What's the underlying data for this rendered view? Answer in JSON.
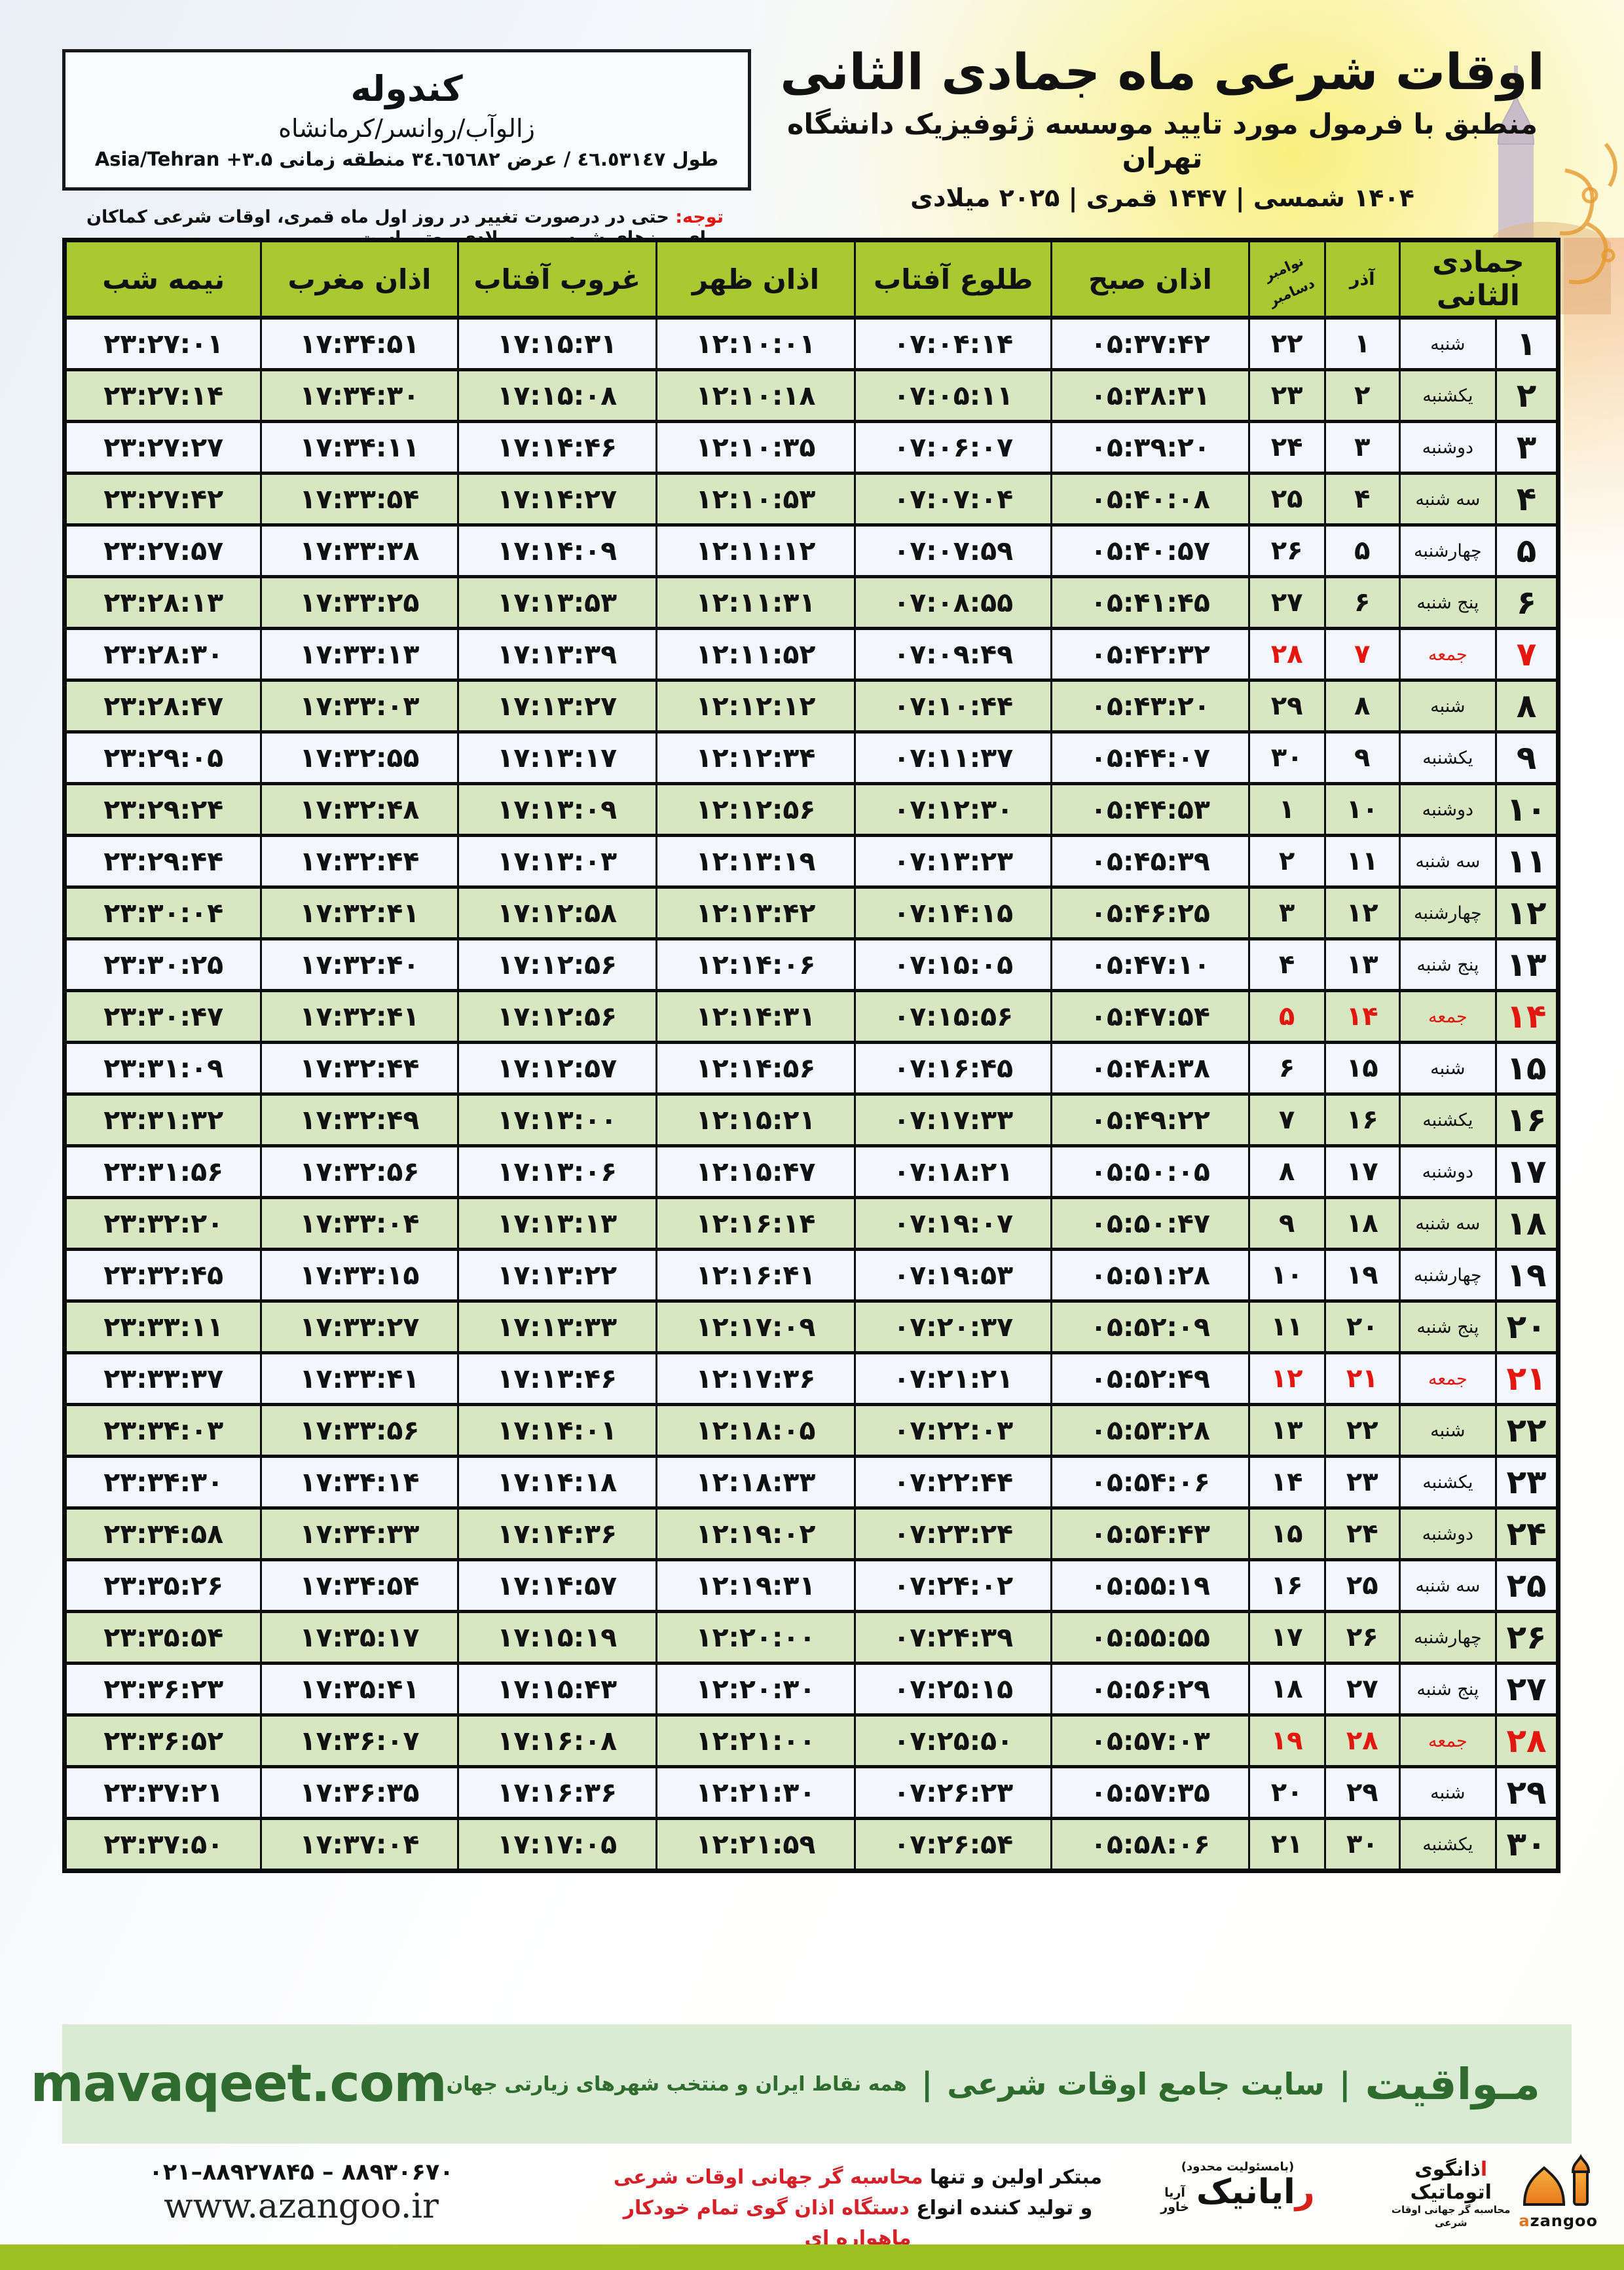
{
  "title": {
    "line1": "اوقات شرعی ماه جمادی الثانی",
    "line2": "منطبق با فرمول مورد تایید موسسه ژئوفیزیک دانشگاه تهران",
    "line3": "۱۴۰۴ شمسی | ۱۴۴۷ قمری | ۲۰۲۵ میلادی"
  },
  "location": {
    "name": "کندوله",
    "region": "زالوآب/روانسر/کرمانشاه",
    "coords": "طول ٤٦.٥٣١٤٧ / عرض ٣٤.٦٥٦٨٢ منطقه زمانی ۳.۵+ Asia/Tehran"
  },
  "note": {
    "label": "توجه:",
    "text": " حتی در درصورت تغییر در روز اول ماه قمری، اوقات شرعی کماکان برای روزهای شمسی و میلادی معتبر است."
  },
  "table": {
    "headers": {
      "jumada": "جمادی الثانی",
      "azar": "آذر",
      "greg_top": "نوامبر",
      "greg_bottom": "دسامبر",
      "fajr": "اذان صبح",
      "sunrise": "طلوع آفتاب",
      "dhuhr": "اذان ظهر",
      "sunset": "غروب آفتاب",
      "maghrib": "اذان مغرب",
      "midnight": "نیمه شب"
    },
    "rows": [
      {
        "day": "۱",
        "weekday": "شنبه",
        "azar": "۱",
        "greg": "۲۲",
        "fajr": "۰۵:۳۷:۴۲",
        "sunrise": "۰۷:۰۴:۱۴",
        "dhuhr": "۱۲:۱۰:۰۱",
        "sunset": "۱۷:۱۵:۳۱",
        "maghrib": "۱۷:۳۴:۵۱",
        "midnight": "۲۳:۲۷:۰۱",
        "friday": false
      },
      {
        "day": "۲",
        "weekday": "یکشنبه",
        "azar": "۲",
        "greg": "۲۳",
        "fajr": "۰۵:۳۸:۳۱",
        "sunrise": "۰۷:۰۵:۱۱",
        "dhuhr": "۱۲:۱۰:۱۸",
        "sunset": "۱۷:۱۵:۰۸",
        "maghrib": "۱۷:۳۴:۳۰",
        "midnight": "۲۳:۲۷:۱۴",
        "friday": false
      },
      {
        "day": "۳",
        "weekday": "دوشنبه",
        "azar": "۳",
        "greg": "۲۴",
        "fajr": "۰۵:۳۹:۲۰",
        "sunrise": "۰۷:۰۶:۰۷",
        "dhuhr": "۱۲:۱۰:۳۵",
        "sunset": "۱۷:۱۴:۴۶",
        "maghrib": "۱۷:۳۴:۱۱",
        "midnight": "۲۳:۲۷:۲۷",
        "friday": false
      },
      {
        "day": "۴",
        "weekday": "سه شنبه",
        "azar": "۴",
        "greg": "۲۵",
        "fajr": "۰۵:۴۰:۰۸",
        "sunrise": "۰۷:۰۷:۰۴",
        "dhuhr": "۱۲:۱۰:۵۳",
        "sunset": "۱۷:۱۴:۲۷",
        "maghrib": "۱۷:۳۳:۵۴",
        "midnight": "۲۳:۲۷:۴۲",
        "friday": false
      },
      {
        "day": "۵",
        "weekday": "چهارشنبه",
        "azar": "۵",
        "greg": "۲۶",
        "fajr": "۰۵:۴۰:۵۷",
        "sunrise": "۰۷:۰۷:۵۹",
        "dhuhr": "۱۲:۱۱:۱۲",
        "sunset": "۱۷:۱۴:۰۹",
        "maghrib": "۱۷:۳۳:۳۸",
        "midnight": "۲۳:۲۷:۵۷",
        "friday": false
      },
      {
        "day": "۶",
        "weekday": "پنج شنبه",
        "azar": "۶",
        "greg": "۲۷",
        "fajr": "۰۵:۴۱:۴۵",
        "sunrise": "۰۷:۰۸:۵۵",
        "dhuhr": "۱۲:۱۱:۳۱",
        "sunset": "۱۷:۱۳:۵۳",
        "maghrib": "۱۷:۳۳:۲۵",
        "midnight": "۲۳:۲۸:۱۳",
        "friday": false
      },
      {
        "day": "۷",
        "weekday": "جمعه",
        "azar": "۷",
        "greg": "۲۸",
        "fajr": "۰۵:۴۲:۳۲",
        "sunrise": "۰۷:۰۹:۴۹",
        "dhuhr": "۱۲:۱۱:۵۲",
        "sunset": "۱۷:۱۳:۳۹",
        "maghrib": "۱۷:۳۳:۱۳",
        "midnight": "۲۳:۲۸:۳۰",
        "friday": true
      },
      {
        "day": "۸",
        "weekday": "شنبه",
        "azar": "۸",
        "greg": "۲۹",
        "fajr": "۰۵:۴۳:۲۰",
        "sunrise": "۰۷:۱۰:۴۴",
        "dhuhr": "۱۲:۱۲:۱۲",
        "sunset": "۱۷:۱۳:۲۷",
        "maghrib": "۱۷:۳۳:۰۳",
        "midnight": "۲۳:۲۸:۴۷",
        "friday": false
      },
      {
        "day": "۹",
        "weekday": "یکشنبه",
        "azar": "۹",
        "greg": "۳۰",
        "fajr": "۰۵:۴۴:۰۷",
        "sunrise": "۰۷:۱۱:۳۷",
        "dhuhr": "۱۲:۱۲:۳۴",
        "sunset": "۱۷:۱۳:۱۷",
        "maghrib": "۱۷:۳۲:۵۵",
        "midnight": "۲۳:۲۹:۰۵",
        "friday": false
      },
      {
        "day": "۱۰",
        "weekday": "دوشنبه",
        "azar": "۱۰",
        "greg": "۱",
        "fajr": "۰۵:۴۴:۵۳",
        "sunrise": "۰۷:۱۲:۳۰",
        "dhuhr": "۱۲:۱۲:۵۶",
        "sunset": "۱۷:۱۳:۰۹",
        "maghrib": "۱۷:۳۲:۴۸",
        "midnight": "۲۳:۲۹:۲۴",
        "friday": false
      },
      {
        "day": "۱۱",
        "weekday": "سه شنبه",
        "azar": "۱۱",
        "greg": "۲",
        "fajr": "۰۵:۴۵:۳۹",
        "sunrise": "۰۷:۱۳:۲۳",
        "dhuhr": "۱۲:۱۳:۱۹",
        "sunset": "۱۷:۱۳:۰۳",
        "maghrib": "۱۷:۳۲:۴۴",
        "midnight": "۲۳:۲۹:۴۴",
        "friday": false
      },
      {
        "day": "۱۲",
        "weekday": "چهارشنبه",
        "azar": "۱۲",
        "greg": "۳",
        "fajr": "۰۵:۴۶:۲۵",
        "sunrise": "۰۷:۱۴:۱۵",
        "dhuhr": "۱۲:۱۳:۴۲",
        "sunset": "۱۷:۱۲:۵۸",
        "maghrib": "۱۷:۳۲:۴۱",
        "midnight": "۲۳:۳۰:۰۴",
        "friday": false
      },
      {
        "day": "۱۳",
        "weekday": "پنج شنبه",
        "azar": "۱۳",
        "greg": "۴",
        "fajr": "۰۵:۴۷:۱۰",
        "sunrise": "۰۷:۱۵:۰۵",
        "dhuhr": "۱۲:۱۴:۰۶",
        "sunset": "۱۷:۱۲:۵۶",
        "maghrib": "۱۷:۳۲:۴۰",
        "midnight": "۲۳:۳۰:۲۵",
        "friday": false
      },
      {
        "day": "۱۴",
        "weekday": "جمعه",
        "azar": "۱۴",
        "greg": "۵",
        "fajr": "۰۵:۴۷:۵۴",
        "sunrise": "۰۷:۱۵:۵۶",
        "dhuhr": "۱۲:۱۴:۳۱",
        "sunset": "۱۷:۱۲:۵۶",
        "maghrib": "۱۷:۳۲:۴۱",
        "midnight": "۲۳:۳۰:۴۷",
        "friday": true
      },
      {
        "day": "۱۵",
        "weekday": "شنبه",
        "azar": "۱۵",
        "greg": "۶",
        "fajr": "۰۵:۴۸:۳۸",
        "sunrise": "۰۷:۱۶:۴۵",
        "dhuhr": "۱۲:۱۴:۵۶",
        "sunset": "۱۷:۱۲:۵۷",
        "maghrib": "۱۷:۳۲:۴۴",
        "midnight": "۲۳:۳۱:۰۹",
        "friday": false
      },
      {
        "day": "۱۶",
        "weekday": "یکشنبه",
        "azar": "۱۶",
        "greg": "۷",
        "fajr": "۰۵:۴۹:۲۲",
        "sunrise": "۰۷:۱۷:۳۳",
        "dhuhr": "۱۲:۱۵:۲۱",
        "sunset": "۱۷:۱۳:۰۰",
        "maghrib": "۱۷:۳۲:۴۹",
        "midnight": "۲۳:۳۱:۳۲",
        "friday": false
      },
      {
        "day": "۱۷",
        "weekday": "دوشنبه",
        "azar": "۱۷",
        "greg": "۸",
        "fajr": "۰۵:۵۰:۰۵",
        "sunrise": "۰۷:۱۸:۲۱",
        "dhuhr": "۱۲:۱۵:۴۷",
        "sunset": "۱۷:۱۳:۰۶",
        "maghrib": "۱۷:۳۲:۵۶",
        "midnight": "۲۳:۳۱:۵۶",
        "friday": false
      },
      {
        "day": "۱۸",
        "weekday": "سه شنبه",
        "azar": "۱۸",
        "greg": "۹",
        "fajr": "۰۵:۵۰:۴۷",
        "sunrise": "۰۷:۱۹:۰۷",
        "dhuhr": "۱۲:۱۶:۱۴",
        "sunset": "۱۷:۱۳:۱۳",
        "maghrib": "۱۷:۳۳:۰۴",
        "midnight": "۲۳:۳۲:۲۰",
        "friday": false
      },
      {
        "day": "۱۹",
        "weekday": "چهارشنبه",
        "azar": "۱۹",
        "greg": "۱۰",
        "fajr": "۰۵:۵۱:۲۸",
        "sunrise": "۰۷:۱۹:۵۳",
        "dhuhr": "۱۲:۱۶:۴۱",
        "sunset": "۱۷:۱۳:۲۲",
        "maghrib": "۱۷:۳۳:۱۵",
        "midnight": "۲۳:۳۲:۴۵",
        "friday": false
      },
      {
        "day": "۲۰",
        "weekday": "پنج شنبه",
        "azar": "۲۰",
        "greg": "۱۱",
        "fajr": "۰۵:۵۲:۰۹",
        "sunrise": "۰۷:۲۰:۳۷",
        "dhuhr": "۱۲:۱۷:۰۹",
        "sunset": "۱۷:۱۳:۳۳",
        "maghrib": "۱۷:۳۳:۲۷",
        "midnight": "۲۳:۳۳:۱۱",
        "friday": false
      },
      {
        "day": "۲۱",
        "weekday": "جمعه",
        "azar": "۲۱",
        "greg": "۱۲",
        "fajr": "۰۵:۵۲:۴۹",
        "sunrise": "۰۷:۲۱:۲۱",
        "dhuhr": "۱۲:۱۷:۳۶",
        "sunset": "۱۷:۱۳:۴۶",
        "maghrib": "۱۷:۳۳:۴۱",
        "midnight": "۲۳:۳۳:۳۷",
        "friday": true
      },
      {
        "day": "۲۲",
        "weekday": "شنبه",
        "azar": "۲۲",
        "greg": "۱۳",
        "fajr": "۰۵:۵۳:۲۸",
        "sunrise": "۰۷:۲۲:۰۳",
        "dhuhr": "۱۲:۱۸:۰۵",
        "sunset": "۱۷:۱۴:۰۱",
        "maghrib": "۱۷:۳۳:۵۶",
        "midnight": "۲۳:۳۴:۰۳",
        "friday": false
      },
      {
        "day": "۲۳",
        "weekday": "یکشنبه",
        "azar": "۲۳",
        "greg": "۱۴",
        "fajr": "۰۵:۵۴:۰۶",
        "sunrise": "۰۷:۲۲:۴۴",
        "dhuhr": "۱۲:۱۸:۳۳",
        "sunset": "۱۷:۱۴:۱۸",
        "maghrib": "۱۷:۳۴:۱۴",
        "midnight": "۲۳:۳۴:۳۰",
        "friday": false
      },
      {
        "day": "۲۴",
        "weekday": "دوشنبه",
        "azar": "۲۴",
        "greg": "۱۵",
        "fajr": "۰۵:۵۴:۴۳",
        "sunrise": "۰۷:۲۳:۲۴",
        "dhuhr": "۱۲:۱۹:۰۲",
        "sunset": "۱۷:۱۴:۳۶",
        "maghrib": "۱۷:۳۴:۳۳",
        "midnight": "۲۳:۳۴:۵۸",
        "friday": false
      },
      {
        "day": "۲۵",
        "weekday": "سه شنبه",
        "azar": "۲۵",
        "greg": "۱۶",
        "fajr": "۰۵:۵۵:۱۹",
        "sunrise": "۰۷:۲۴:۰۲",
        "dhuhr": "۱۲:۱۹:۳۱",
        "sunset": "۱۷:۱۴:۵۷",
        "maghrib": "۱۷:۳۴:۵۴",
        "midnight": "۲۳:۳۵:۲۶",
        "friday": false
      },
      {
        "day": "۲۶",
        "weekday": "چهارشنبه",
        "azar": "۲۶",
        "greg": "۱۷",
        "fajr": "۰۵:۵۵:۵۵",
        "sunrise": "۰۷:۲۴:۳۹",
        "dhuhr": "۱۲:۲۰:۰۰",
        "sunset": "۱۷:۱۵:۱۹",
        "maghrib": "۱۷:۳۵:۱۷",
        "midnight": "۲۳:۳۵:۵۴",
        "friday": false
      },
      {
        "day": "۲۷",
        "weekday": "پنج شنبه",
        "azar": "۲۷",
        "greg": "۱۸",
        "fajr": "۰۵:۵۶:۲۹",
        "sunrise": "۰۷:۲۵:۱۵",
        "dhuhr": "۱۲:۲۰:۳۰",
        "sunset": "۱۷:۱۵:۴۳",
        "maghrib": "۱۷:۳۵:۴۱",
        "midnight": "۲۳:۳۶:۲۳",
        "friday": false
      },
      {
        "day": "۲۸",
        "weekday": "جمعه",
        "azar": "۲۸",
        "greg": "۱۹",
        "fajr": "۰۵:۵۷:۰۳",
        "sunrise": "۰۷:۲۵:۵۰",
        "dhuhr": "۱۲:۲۱:۰۰",
        "sunset": "۱۷:۱۶:۰۸",
        "maghrib": "۱۷:۳۶:۰۷",
        "midnight": "۲۳:۳۶:۵۲",
        "friday": true
      },
      {
        "day": "۲۹",
        "weekday": "شنبه",
        "azar": "۲۹",
        "greg": "۲۰",
        "fajr": "۰۵:۵۷:۳۵",
        "sunrise": "۰۷:۲۶:۲۳",
        "dhuhr": "۱۲:۲۱:۳۰",
        "sunset": "۱۷:۱۶:۳۶",
        "maghrib": "۱۷:۳۶:۳۵",
        "midnight": "۲۳:۳۷:۲۱",
        "friday": false
      },
      {
        "day": "۳۰",
        "weekday": "یکشنبه",
        "azar": "۳۰",
        "greg": "۲۱",
        "fajr": "۰۵:۵۸:۰۶",
        "sunrise": "۰۷:۲۶:۵۴",
        "dhuhr": "۱۲:۲۱:۵۹",
        "sunset": "۱۷:۱۷:۰۵",
        "maghrib": "۱۷:۳۷:۰۴",
        "midnight": "۲۳:۳۷:۵۰",
        "friday": false
      }
    ]
  },
  "band": {
    "site_fa": "مـواقیت",
    "sep1": "|",
    "site_desc": "سایت جامع اوقات شرعی",
    "sep2": "|",
    "site_sub": "همه نقاط ایران و منتخب شهرهای زیارتی جهان",
    "site_url": "mavaqeet.com"
  },
  "bottom": {
    "phone": "۰۲۱–۸۸۹۲۷۸۴۵ – ۸۸۹۳۰۶۷۰",
    "url": "www.azangoo.ir",
    "promo1_black": "مبتکر اولین و تنها ",
    "promo1_red": "محاسبه گر جهانی اوقات شرعی",
    "promo2_black": "و تولید کننده انواع ",
    "promo2_red": "دستگاه اذان گوی تمام خودکار ماهواره ای",
    "rayanik_top": "(بامسئولیت محدود)",
    "rayanik_red": "ر",
    "rayanik_rest": "ایانیک",
    "rayanik_side1": "آریا",
    "rayanik_side2": "خاور",
    "azangoo_fa_red": "ا",
    "azangoo_fa_rest": "ذانگوی اتوماتیک",
    "azangoo_sub": "محاسبه گر جهانی اوقات شرعی",
    "azangoo_latin_a": "a",
    "azangoo_latin_rest": "zangoo"
  },
  "colors": {
    "header_green": "#a9c832",
    "row_green": "#d6e7c2",
    "row_light": "#f3f6fa",
    "friday_red": "#e3170f",
    "band_bg": "#d9ebd2",
    "band_green": "#2f6b2e",
    "lime_bar": "#9cc020",
    "logo_orange": "#f0941e"
  }
}
